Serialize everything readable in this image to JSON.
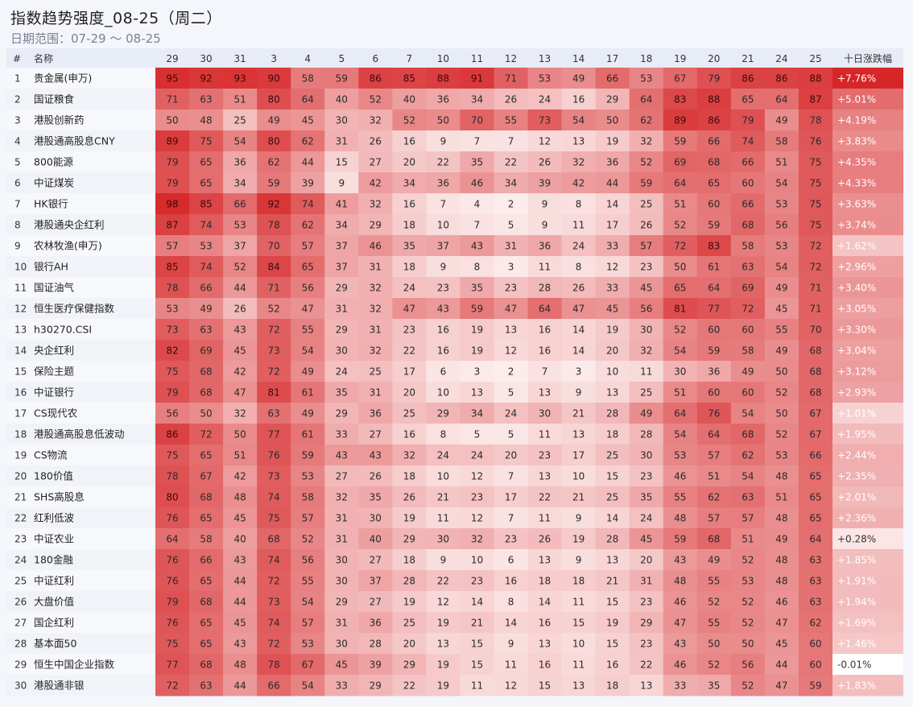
{
  "header": {
    "title": "指数趋势强度_08-25（周二）",
    "subtitle": "日期范围：07-29 ～ 08-25"
  },
  "chart_data": {
    "type": "heatmap",
    "columns": {
      "index": "#",
      "name": "名称",
      "days": [
        "29",
        "30",
        "31",
        "3",
        "4",
        "5",
        "6",
        "7",
        "10",
        "11",
        "12",
        "13",
        "14",
        "17",
        "18",
        "19",
        "20",
        "21",
        "24",
        "25"
      ],
      "change": "十日涨跌幅"
    },
    "rows": [
      {
        "idx": "1",
        "name": "贵金属(申万)",
        "values": [
          95,
          92,
          93,
          90,
          58,
          59,
          86,
          85,
          88,
          91,
          71,
          53,
          49,
          66,
          53,
          67,
          79,
          86,
          86,
          88
        ],
        "change": "+7.76%",
        "change_value": 7.76
      },
      {
        "idx": "2",
        "name": "国证粮食",
        "values": [
          71,
          63,
          51,
          80,
          64,
          40,
          52,
          40,
          36,
          34,
          26,
          24,
          16,
          29,
          64,
          83,
          88,
          65,
          64,
          87
        ],
        "change": "+5.01%",
        "change_value": 5.01
      },
      {
        "idx": "3",
        "name": "港股创新药",
        "values": [
          50,
          48,
          25,
          49,
          45,
          30,
          32,
          52,
          50,
          70,
          55,
          73,
          54,
          50,
          62,
          89,
          86,
          79,
          49,
          78
        ],
        "change": "+4.19%",
        "change_value": 4.19
      },
      {
        "idx": "4",
        "name": "港股通高股息CNY",
        "values": [
          89,
          75,
          54,
          80,
          62,
          31,
          26,
          16,
          9,
          7,
          7,
          12,
          13,
          19,
          32,
          59,
          66,
          74,
          58,
          76
        ],
        "change": "+3.83%",
        "change_value": 3.83
      },
      {
        "idx": "5",
        "name": "800能源",
        "values": [
          79,
          65,
          36,
          62,
          44,
          15,
          27,
          20,
          22,
          35,
          22,
          26,
          32,
          36,
          52,
          69,
          68,
          66,
          51,
          75
        ],
        "change": "+4.35%",
        "change_value": 4.35
      },
      {
        "idx": "6",
        "name": "中证煤炭",
        "values": [
          79,
          65,
          34,
          59,
          39,
          9,
          42,
          34,
          36,
          46,
          34,
          39,
          42,
          44,
          59,
          64,
          65,
          60,
          54,
          75
        ],
        "change": "+4.33%",
        "change_value": 4.33
      },
      {
        "idx": "7",
        "name": "HK银行",
        "values": [
          98,
          85,
          66,
          92,
          74,
          41,
          32,
          16,
          7,
          4,
          2,
          9,
          8,
          14,
          25,
          51,
          60,
          66,
          53,
          75
        ],
        "change": "+3.63%",
        "change_value": 3.63
      },
      {
        "idx": "8",
        "name": "港股通央企红利",
        "values": [
          87,
          74,
          53,
          78,
          62,
          34,
          29,
          18,
          10,
          7,
          5,
          9,
          11,
          17,
          26,
          52,
          59,
          68,
          56,
          75
        ],
        "change": "+3.74%",
        "change_value": 3.74
      },
      {
        "idx": "9",
        "name": "农林牧渔(申万)",
        "values": [
          57,
          53,
          37,
          70,
          57,
          37,
          46,
          35,
          37,
          43,
          31,
          36,
          24,
          33,
          57,
          72,
          83,
          58,
          53,
          72
        ],
        "change": "+1.62%",
        "change_value": 1.62
      },
      {
        "idx": "10",
        "name": "银行AH",
        "values": [
          85,
          74,
          52,
          84,
          65,
          37,
          31,
          18,
          9,
          8,
          3,
          11,
          8,
          12,
          23,
          50,
          61,
          63,
          54,
          72
        ],
        "change": "+2.96%",
        "change_value": 2.96
      },
      {
        "idx": "11",
        "name": "国证油气",
        "values": [
          78,
          66,
          44,
          71,
          56,
          29,
          32,
          24,
          23,
          35,
          23,
          28,
          26,
          33,
          45,
          65,
          64,
          69,
          49,
          71
        ],
        "change": "+3.40%",
        "change_value": 3.4
      },
      {
        "idx": "12",
        "name": "恒生医疗保健指数",
        "values": [
          53,
          49,
          26,
          52,
          47,
          31,
          32,
          47,
          43,
          59,
          47,
          64,
          47,
          45,
          56,
          81,
          77,
          72,
          45,
          71
        ],
        "change": "+3.05%",
        "change_value": 3.05
      },
      {
        "idx": "13",
        "name": "h30270.CSI",
        "values": [
          73,
          63,
          43,
          72,
          55,
          29,
          31,
          23,
          16,
          19,
          13,
          16,
          14,
          19,
          30,
          52,
          60,
          60,
          55,
          70
        ],
        "change": "+3.30%",
        "change_value": 3.3
      },
      {
        "idx": "14",
        "name": "央企红利",
        "values": [
          82,
          69,
          45,
          73,
          54,
          30,
          32,
          22,
          16,
          19,
          12,
          16,
          14,
          20,
          32,
          54,
          59,
          58,
          49,
          68
        ],
        "change": "+3.04%",
        "change_value": 3.04
      },
      {
        "idx": "15",
        "name": "保险主题",
        "values": [
          75,
          68,
          42,
          72,
          49,
          24,
          25,
          17,
          6,
          3,
          2,
          7,
          3,
          10,
          11,
          30,
          36,
          49,
          50,
          68
        ],
        "change": "+3.12%",
        "change_value": 3.12
      },
      {
        "idx": "16",
        "name": "中证银行",
        "values": [
          79,
          68,
          47,
          81,
          61,
          35,
          31,
          20,
          10,
          13,
          5,
          13,
          9,
          13,
          25,
          51,
          60,
          60,
          52,
          68
        ],
        "change": "+2.93%",
        "change_value": 2.93
      },
      {
        "idx": "17",
        "name": "CS现代农",
        "values": [
          56,
          50,
          32,
          63,
          49,
          29,
          36,
          25,
          29,
          34,
          24,
          30,
          21,
          28,
          49,
          64,
          76,
          54,
          50,
          67
        ],
        "change": "+1.01%",
        "change_value": 1.01
      },
      {
        "idx": "18",
        "name": "港股通高股息低波动",
        "values": [
          86,
          72,
          50,
          77,
          61,
          33,
          27,
          16,
          8,
          5,
          5,
          11,
          13,
          18,
          28,
          54,
          64,
          68,
          52,
          67
        ],
        "change": "+1.95%",
        "change_value": 1.95
      },
      {
        "idx": "19",
        "name": "CS物流",
        "values": [
          75,
          65,
          51,
          76,
          59,
          43,
          43,
          32,
          24,
          24,
          20,
          23,
          17,
          25,
          30,
          53,
          57,
          62,
          53,
          66
        ],
        "change": "+2.44%",
        "change_value": 2.44
      },
      {
        "idx": "20",
        "name": "180价值",
        "values": [
          78,
          67,
          42,
          73,
          53,
          27,
          26,
          18,
          10,
          12,
          7,
          13,
          10,
          15,
          23,
          46,
          51,
          54,
          48,
          65
        ],
        "change": "+2.35%",
        "change_value": 2.35
      },
      {
        "idx": "21",
        "name": "SHS高股息",
        "values": [
          80,
          68,
          48,
          74,
          58,
          32,
          35,
          26,
          21,
          23,
          17,
          22,
          21,
          25,
          35,
          55,
          62,
          63,
          51,
          65
        ],
        "change": "+2.01%",
        "change_value": 2.01
      },
      {
        "idx": "22",
        "name": "红利低波",
        "values": [
          76,
          65,
          45,
          75,
          57,
          31,
          30,
          19,
          11,
          12,
          7,
          11,
          9,
          14,
          24,
          48,
          57,
          57,
          48,
          65
        ],
        "change": "+2.36%",
        "change_value": 2.36
      },
      {
        "idx": "23",
        "name": "中证农业",
        "values": [
          64,
          58,
          40,
          68,
          52,
          31,
          40,
          29,
          30,
          32,
          23,
          26,
          19,
          28,
          45,
          59,
          68,
          51,
          49,
          64
        ],
        "change": "+0.28%",
        "change_value": 0.28
      },
      {
        "idx": "24",
        "name": "180金融",
        "values": [
          76,
          66,
          43,
          74,
          56,
          30,
          27,
          18,
          9,
          10,
          6,
          13,
          9,
          13,
          20,
          43,
          49,
          52,
          48,
          63
        ],
        "change": "+1.85%",
        "change_value": 1.85
      },
      {
        "idx": "25",
        "name": "中证红利",
        "values": [
          76,
          65,
          44,
          72,
          55,
          30,
          37,
          28,
          22,
          23,
          16,
          18,
          18,
          21,
          31,
          48,
          55,
          53,
          48,
          63
        ],
        "change": "+1.91%",
        "change_value": 1.91
      },
      {
        "idx": "26",
        "name": "大盘价值",
        "values": [
          79,
          68,
          44,
          73,
          54,
          29,
          27,
          19,
          12,
          14,
          8,
          14,
          11,
          15,
          23,
          46,
          52,
          52,
          46,
          63
        ],
        "change": "+1.94%",
        "change_value": 1.94
      },
      {
        "idx": "27",
        "name": "国企红利",
        "values": [
          76,
          65,
          45,
          74,
          57,
          31,
          36,
          25,
          19,
          21,
          14,
          16,
          15,
          19,
          29,
          47,
          55,
          52,
          47,
          62
        ],
        "change": "+1.69%",
        "change_value": 1.69
      },
      {
        "idx": "28",
        "name": "基本面50",
        "values": [
          75,
          65,
          43,
          72,
          53,
          30,
          28,
          20,
          13,
          15,
          9,
          13,
          10,
          15,
          23,
          43,
          50,
          50,
          45,
          60
        ],
        "change": "+1.46%",
        "change_value": 1.46
      },
      {
        "idx": "29",
        "name": "恒生中国企业指数",
        "values": [
          77,
          68,
          48,
          78,
          67,
          45,
          39,
          29,
          19,
          15,
          11,
          16,
          11,
          16,
          22,
          46,
          52,
          56,
          44,
          60
        ],
        "change": "-0.01%",
        "change_value": -0.01
      },
      {
        "idx": "30",
        "name": "港股通非银",
        "values": [
          72,
          63,
          44,
          66,
          54,
          33,
          29,
          22,
          19,
          11,
          12,
          15,
          13,
          18,
          13,
          33,
          35,
          52,
          47,
          59
        ],
        "change": "+1.83%",
        "change_value": 1.83
      }
    ]
  }
}
